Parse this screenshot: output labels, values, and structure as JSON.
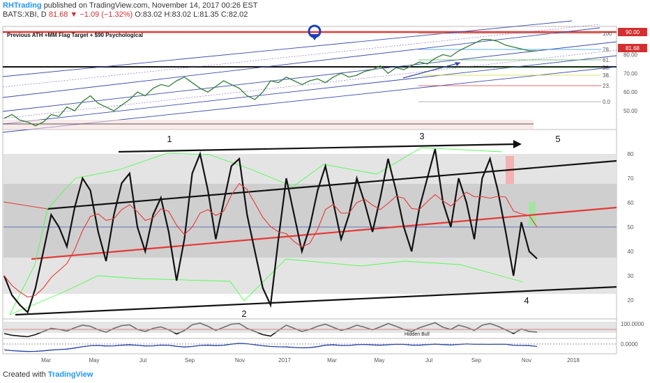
{
  "header": {
    "author": "RHTrading",
    "published_text": "published on TradingView.com, November 14, 2017 00:26 EST",
    "symbol": "BATS:XBI, D",
    "last": "81.68",
    "change": "−1.09 (−1.32%)",
    "ohlc": [
      "O:83.02",
      "H:83.02",
      "L:81.35",
      "C:82.02"
    ]
  },
  "annotation_title": "Previous ATH +MM Flag Target + $90 Psychological",
  "footer": {
    "created_with": "Created with",
    "brand": "TradingView"
  },
  "colors": {
    "up": "#43a047",
    "down": "#c62828",
    "red_line": "#e53935",
    "blue": "#3949ab",
    "green": "#4cff4c"
  },
  "chart_data": [
    {
      "type": "line",
      "name": "price",
      "x_labels": [
        "Mar",
        "May",
        "Jul",
        "Sep",
        "Nov",
        "2017",
        "Mar",
        "May",
        "Jul",
        "Sep",
        "Nov",
        "2018"
      ],
      "y_ticks": [
        "50.00",
        "60.00",
        "70.00",
        "80.00"
      ],
      "price_labels": [
        "90.00",
        "81.68"
      ],
      "fib_levels": [
        {
          "label": "100",
          "color": "#999999"
        },
        {
          "label": "78.",
          "color": "#2196f3"
        },
        {
          "label": "61.",
          "color": "#4caf50"
        },
        {
          "label": "50.",
          "color": "#4caf50"
        },
        {
          "label": "38.",
          "color": "#cddc39"
        },
        {
          "label": "23.",
          "color": "#e53935"
        },
        {
          "label": "0.0",
          "color": "#999999"
        }
      ],
      "y": [
        46,
        48,
        45,
        44,
        42,
        44,
        48,
        47,
        52,
        50,
        55,
        58,
        54,
        52,
        50,
        53,
        56,
        60,
        58,
        62,
        64,
        63,
        66,
        68,
        65,
        62,
        60,
        63,
        66,
        64,
        62,
        58,
        56,
        60,
        66,
        65,
        68,
        66,
        64,
        66,
        67,
        65,
        68,
        70,
        68,
        69,
        71,
        72,
        74,
        70,
        73,
        72,
        74,
        76,
        75,
        78,
        80,
        79,
        82,
        84,
        86,
        88,
        88,
        87,
        85,
        84,
        83,
        82,
        82
      ]
    },
    {
      "type": "line",
      "name": "rsi",
      "y_ticks": [
        "20",
        "30",
        "40",
        "50",
        "60",
        "70",
        "80"
      ],
      "wave_labels": [
        "1",
        "2",
        "3",
        "4",
        "5"
      ],
      "y": [
        30,
        22,
        18,
        15,
        25,
        40,
        55,
        50,
        42,
        58,
        70,
        65,
        48,
        36,
        55,
        68,
        72,
        50,
        40,
        55,
        62,
        48,
        28,
        45,
        72,
        80,
        65,
        45,
        60,
        75,
        78,
        55,
        40,
        25,
        18,
        45,
        70,
        55,
        40,
        50,
        65,
        75,
        60,
        45,
        55,
        70,
        60,
        48,
        62,
        78,
        65,
        50,
        40,
        58,
        70,
        82,
        60,
        50,
        70,
        60,
        45,
        70,
        78,
        65,
        48,
        30,
        52,
        40,
        37
      ]
    }
  ],
  "lower_panels": {
    "hidden_bull_label": "Hidden Bull",
    "right_values": [
      "100.0000",
      "0.0000"
    ]
  }
}
